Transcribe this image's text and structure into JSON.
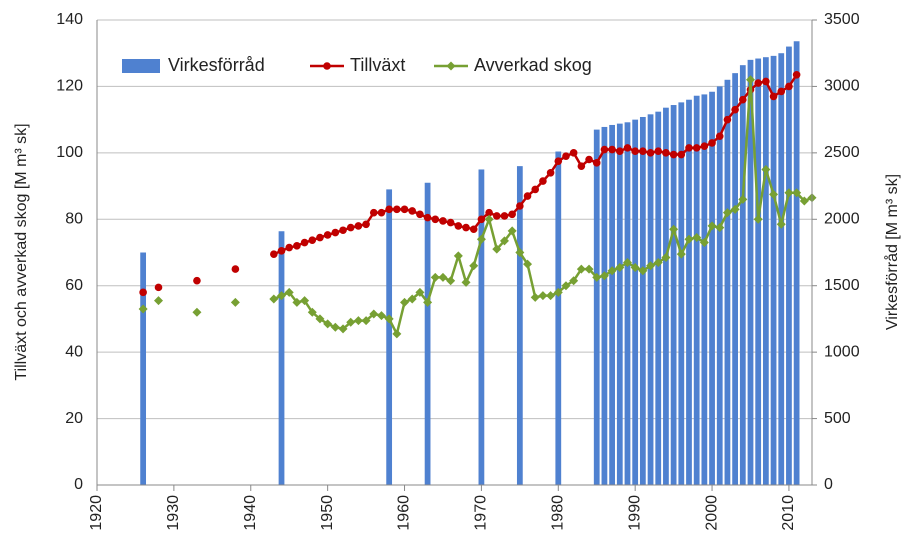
{
  "chart_data": {
    "type": "combo",
    "ylabel": "Tillväxt och avverkad skog [M m³ sk]",
    "y2label": "Virkesförråd [M m³ sk]",
    "xlim": [
      1920,
      2013
    ],
    "xticks": [
      1920,
      1930,
      1940,
      1950,
      1960,
      1970,
      1980,
      1990,
      2000,
      2010
    ],
    "ylim": [
      0,
      140
    ],
    "yticks": [
      0,
      20,
      40,
      60,
      80,
      100,
      120,
      140
    ],
    "y2lim": [
      0,
      3500
    ],
    "y2ticks": [
      0,
      500,
      1000,
      1500,
      2000,
      2500,
      3000,
      3500
    ],
    "grid": true,
    "legend": "top",
    "series": [
      {
        "name": "Virkesförråd",
        "kind": "bar",
        "axis": "y2",
        "color": "#4f81d0",
        "x": [
          1926,
          1944,
          1958,
          1963,
          1970,
          1975,
          1980,
          1985,
          1986,
          1987,
          1988,
          1989,
          1990,
          1991,
          1992,
          1993,
          1994,
          1995,
          1996,
          1997,
          1998,
          1999,
          2000,
          2001,
          2002,
          2003,
          2004,
          2005,
          2006,
          2007,
          2008,
          2009,
          2010,
          2011
        ],
        "values": [
          1750,
          1910,
          2225,
          2275,
          2375,
          2400,
          2510,
          2675,
          2695,
          2710,
          2720,
          2730,
          2750,
          2770,
          2790,
          2810,
          2840,
          2860,
          2880,
          2900,
          2930,
          2940,
          2960,
          3000,
          3050,
          3100,
          3160,
          3200,
          3210,
          3220,
          3230,
          3250,
          3300,
          3340
        ]
      },
      {
        "name": "Tillväxt",
        "kind": "line",
        "marker": "circle",
        "color": "#c00000",
        "x": [
          1926,
          1927,
          1928,
          1930,
          1933,
          1935,
          1938,
          1940,
          1943,
          1944,
          1945,
          1946,
          1947,
          1948,
          1949,
          1950,
          1951,
          1952,
          1953,
          1954,
          1955,
          1956,
          1957,
          1958,
          1959,
          1960,
          1961,
          1962,
          1963,
          1964,
          1965,
          1966,
          1967,
          1968,
          1969,
          1970,
          1971,
          1972,
          1973,
          1974,
          1975,
          1976,
          1977,
          1978,
          1979,
          1980,
          1981,
          1982,
          1983,
          1984,
          1985,
          1986,
          1987,
          1988,
          1989,
          1990,
          1991,
          1992,
          1993,
          1994,
          1995,
          1996,
          1997,
          1998,
          1999,
          2000,
          2001,
          2002,
          2003,
          2004,
          2005,
          2006,
          2007,
          2008,
          2009,
          2010,
          2011
        ],
        "values": [
          58,
          null,
          59.5,
          null,
          61.5,
          null,
          65,
          null,
          69.5,
          70.5,
          71.5,
          72,
          73,
          73.7,
          74.5,
          75.3,
          76,
          76.7,
          77.5,
          78,
          78.5,
          82,
          82,
          83,
          83,
          83,
          82.5,
          81.5,
          80.5,
          80,
          79.5,
          79,
          78,
          77.5,
          77,
          80,
          82,
          81,
          81,
          81.5,
          84,
          87,
          89,
          91.5,
          94,
          97.5,
          99,
          100,
          96,
          98,
          97,
          101,
          101,
          100.5,
          101.5,
          100.5,
          100.5,
          100,
          100.5,
          100,
          99.5,
          99.5,
          101.5,
          101.5,
          102,
          103,
          105,
          110,
          113,
          116,
          119,
          121,
          121.5,
          117,
          118.5,
          120,
          123.5
        ]
      },
      {
        "name": "Avverkad skog",
        "kind": "line",
        "marker": "diamond",
        "color": "#77a033",
        "x": [
          1926,
          1927,
          1928,
          1930,
          1933,
          1935,
          1938,
          1940,
          1943,
          1944,
          1945,
          1946,
          1947,
          1948,
          1949,
          1950,
          1951,
          1952,
          1953,
          1954,
          1955,
          1956,
          1957,
          1958,
          1959,
          1960,
          1961,
          1962,
          1963,
          1964,
          1965,
          1966,
          1967,
          1968,
          1969,
          1970,
          1971,
          1972,
          1973,
          1974,
          1975,
          1976,
          1977,
          1978,
          1979,
          1980,
          1981,
          1982,
          1983,
          1984,
          1985,
          1986,
          1987,
          1988,
          1989,
          1990,
          1991,
          1992,
          1993,
          1994,
          1995,
          1996,
          1997,
          1998,
          1999,
          2000,
          2001,
          2002,
          2003,
          2004,
          2005,
          2006,
          2007,
          2008,
          2009,
          2010,
          2011,
          2012,
          2013
        ],
        "values": [
          53,
          null,
          55.5,
          null,
          52,
          null,
          55,
          null,
          56,
          57,
          58,
          55,
          55.5,
          52,
          50,
          48.5,
          47.5,
          47,
          49,
          49.5,
          49.5,
          51.5,
          51,
          50,
          45.5,
          55,
          56,
          58,
          55,
          62.5,
          62.5,
          61.5,
          69,
          61,
          66,
          74,
          80,
          71,
          73.5,
          76.5,
          70,
          66.5,
          56.5,
          57,
          57,
          58,
          60,
          61.5,
          65,
          65,
          62.5,
          63,
          64.5,
          65.5,
          67,
          65.5,
          64.5,
          66,
          67,
          68.5,
          77,
          69.5,
          74,
          74.5,
          73,
          78,
          77.5,
          82,
          83,
          86,
          122,
          80,
          95,
          87.5,
          78.5,
          88,
          88,
          85.5,
          86.5
        ]
      }
    ]
  }
}
